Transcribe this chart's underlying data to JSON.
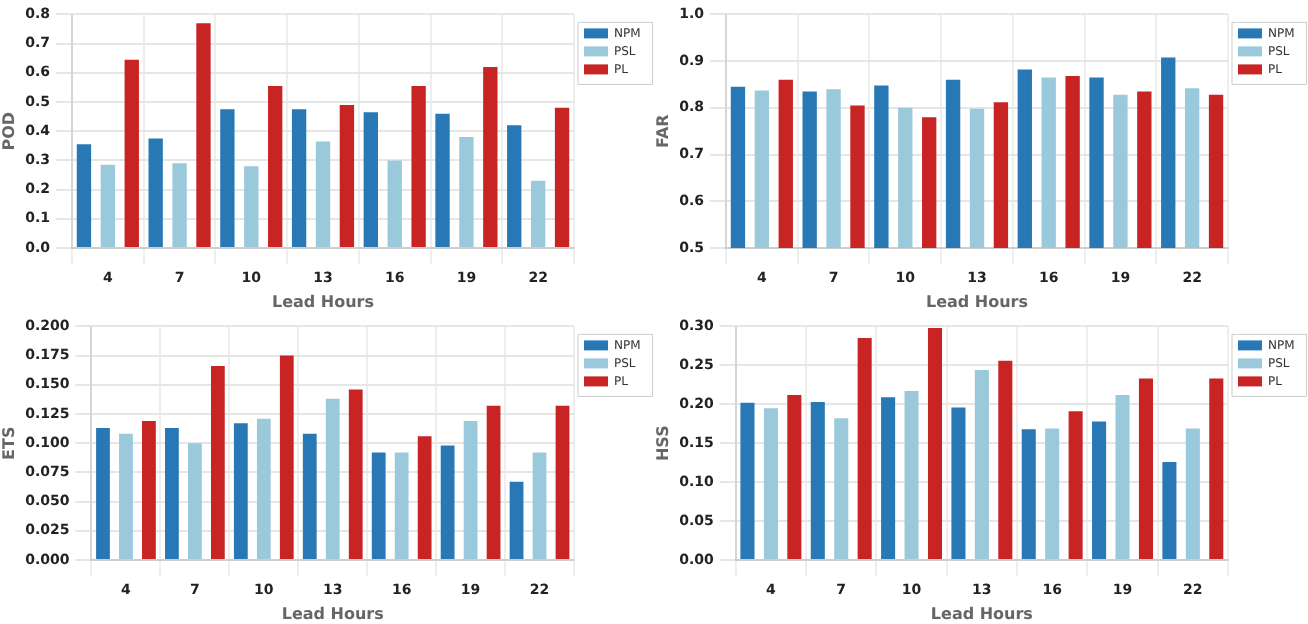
{
  "chart_data": [
    {
      "type": "bar",
      "xlabel": "Lead Hours",
      "ylabel": "POD",
      "categories": [
        "4",
        "7",
        "10",
        "13",
        "16",
        "19",
        "22"
      ],
      "ylim": [
        0,
        0.8
      ],
      "yticks": [
        {
          "value": 0,
          "label": "0.0"
        },
        {
          "value": 0.1,
          "label": "0.1"
        },
        {
          "value": 0.2,
          "label": "0.2"
        },
        {
          "value": 0.3,
          "label": "0.3"
        },
        {
          "value": 0.4,
          "label": "0.4"
        },
        {
          "value": 0.5,
          "label": "0.5"
        },
        {
          "value": 0.6,
          "label": "0.6"
        },
        {
          "value": 0.7,
          "label": "0.7"
        },
        {
          "value": 0.8,
          "label": "0.8"
        }
      ],
      "grid": true,
      "legend": "top right",
      "series": [
        {
          "name": "NPM",
          "color": "#2878b5",
          "values": [
            0.355,
            0.375,
            0.475,
            0.475,
            0.465,
            0.46,
            0.42
          ]
        },
        {
          "name": "PSL",
          "color": "#9ac9db",
          "values": [
            0.285,
            0.29,
            0.28,
            0.365,
            0.3,
            0.38,
            0.23
          ]
        },
        {
          "name": "PL",
          "color": "#c82423",
          "values": [
            0.645,
            0.77,
            0.555,
            0.49,
            0.555,
            0.62,
            0.48
          ]
        }
      ]
    },
    {
      "type": "bar",
      "xlabel": "Lead Hours",
      "ylabel": "FAR",
      "categories": [
        "4",
        "7",
        "10",
        "13",
        "16",
        "19",
        "22"
      ],
      "ylim": [
        0.5,
        1.0
      ],
      "yticks": [
        {
          "value": 0.5,
          "label": "0.5"
        },
        {
          "value": 0.6,
          "label": "0.6"
        },
        {
          "value": 0.7,
          "label": "0.7"
        },
        {
          "value": 0.8,
          "label": "0.8"
        },
        {
          "value": 0.9,
          "label": "0.9"
        },
        {
          "value": 1.0,
          "label": "1.0"
        }
      ],
      "grid": true,
      "legend": "top right",
      "series": [
        {
          "name": "NPM",
          "color": "#2878b5",
          "values": [
            0.845,
            0.835,
            0.848,
            0.86,
            0.882,
            0.865,
            0.908
          ]
        },
        {
          "name": "PSL",
          "color": "#9ac9db",
          "values": [
            0.837,
            0.84,
            0.8,
            0.798,
            0.865,
            0.828,
            0.842
          ]
        },
        {
          "name": "PL",
          "color": "#c82423",
          "values": [
            0.86,
            0.805,
            0.78,
            0.812,
            0.868,
            0.835,
            0.828
          ]
        }
      ]
    },
    {
      "type": "bar",
      "xlabel": "Lead Hours",
      "ylabel": "ETS",
      "categories": [
        "4",
        "7",
        "10",
        "13",
        "16",
        "19",
        "22"
      ],
      "ylim": [
        0,
        0.2
      ],
      "yticks": [
        {
          "value": 0,
          "label": "0.000"
        },
        {
          "value": 0.025,
          "label": "0.025"
        },
        {
          "value": 0.05,
          "label": "0.050"
        },
        {
          "value": 0.075,
          "label": "0.075"
        },
        {
          "value": 0.1,
          "label": "0.100"
        },
        {
          "value": 0.125,
          "label": "0.125"
        },
        {
          "value": 0.15,
          "label": "0.150"
        },
        {
          "value": 0.175,
          "label": "0.175"
        },
        {
          "value": 0.2,
          "label": "0.200"
        }
      ],
      "grid": true,
      "legend": "top right",
      "series": [
        {
          "name": "NPM",
          "color": "#2878b5",
          "values": [
            0.113,
            0.113,
            0.117,
            0.108,
            0.092,
            0.098,
            0.067
          ]
        },
        {
          "name": "PSL",
          "color": "#9ac9db",
          "values": [
            0.108,
            0.1,
            0.121,
            0.138,
            0.092,
            0.119,
            0.092
          ]
        },
        {
          "name": "PL",
          "color": "#c82423",
          "values": [
            0.119,
            0.166,
            0.175,
            0.146,
            0.106,
            0.132,
            0.132
          ]
        }
      ]
    },
    {
      "type": "bar",
      "xlabel": "Lead Hours",
      "ylabel": "HSS",
      "categories": [
        "4",
        "7",
        "10",
        "13",
        "16",
        "19",
        "22"
      ],
      "ylim": [
        0,
        0.3
      ],
      "yticks": [
        {
          "value": 0,
          "label": "0.00"
        },
        {
          "value": 0.05,
          "label": "0.05"
        },
        {
          "value": 0.1,
          "label": "0.10"
        },
        {
          "value": 0.15,
          "label": "0.15"
        },
        {
          "value": 0.2,
          "label": "0.20"
        },
        {
          "value": 0.25,
          "label": "0.25"
        },
        {
          "value": 0.3,
          "label": "0.30"
        }
      ],
      "grid": true,
      "legend": "top right",
      "series": [
        {
          "name": "NPM",
          "color": "#2878b5",
          "values": [
            0.202,
            0.203,
            0.209,
            0.196,
            0.168,
            0.178,
            0.126
          ]
        },
        {
          "name": "PSL",
          "color": "#9ac9db",
          "values": [
            0.195,
            0.182,
            0.217,
            0.244,
            0.169,
            0.212,
            0.169
          ]
        },
        {
          "name": "PL",
          "color": "#c82423",
          "values": [
            0.212,
            0.285,
            0.298,
            0.256,
            0.191,
            0.233,
            0.233
          ]
        }
      ]
    }
  ]
}
